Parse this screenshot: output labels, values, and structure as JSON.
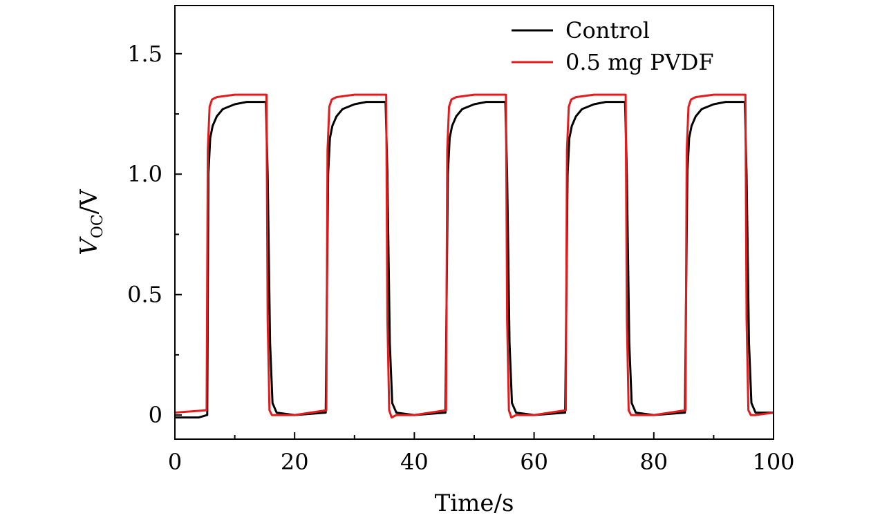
{
  "chart_data": {
    "type": "line",
    "xlabel": "Time/s",
    "ylabel_main": "V",
    "ylabel_sub": "OC",
    "ylabel_suffix": "/V",
    "xlim": [
      0,
      100
    ],
    "ylim": [
      -0.1,
      1.7
    ],
    "xticks": [
      0,
      20,
      40,
      60,
      80,
      100
    ],
    "xtick_labels": [
      "0",
      "20",
      "40",
      "60",
      "80",
      "100"
    ],
    "yticks": [
      0,
      0.5,
      1.0,
      1.5
    ],
    "ytick_labels": [
      "0",
      "0.5",
      "1.0",
      "1.5"
    ],
    "legend_position": "top-right",
    "grid": false,
    "series": [
      {
        "name": "Control",
        "color": "#000000",
        "x": [
          0,
          4.0,
          5.4,
          5.6,
          5.9,
          6.3,
          7.0,
          8.0,
          10.0,
          12.0,
          15.2,
          15.5,
          15.9,
          16.3,
          17.0,
          20.0,
          25.2,
          25.6,
          25.9,
          26.3,
          27.0,
          28.0,
          30.0,
          32.0,
          35.2,
          35.5,
          35.9,
          36.3,
          37.0,
          40.0,
          45.2,
          45.6,
          45.9,
          46.3,
          47.0,
          48.0,
          50.0,
          52.0,
          55.2,
          55.5,
          55.9,
          56.3,
          57.0,
          60.0,
          65.2,
          65.6,
          65.9,
          66.3,
          67.0,
          68.0,
          70.0,
          72.0,
          75.2,
          75.5,
          75.9,
          76.3,
          77.0,
          80.0,
          85.2,
          85.6,
          85.9,
          86.3,
          87.0,
          88.0,
          90.0,
          92.0,
          95.2,
          95.5,
          95.9,
          96.3,
          97.0,
          100.0
        ],
        "y": [
          -0.01,
          -0.01,
          0.0,
          1.0,
          1.15,
          1.2,
          1.24,
          1.27,
          1.29,
          1.3,
          1.3,
          1.0,
          0.3,
          0.05,
          0.01,
          0.0,
          0.01,
          1.0,
          1.15,
          1.2,
          1.24,
          1.27,
          1.29,
          1.3,
          1.3,
          1.0,
          0.3,
          0.05,
          0.01,
          0.0,
          0.01,
          1.0,
          1.15,
          1.2,
          1.24,
          1.27,
          1.29,
          1.3,
          1.3,
          1.0,
          0.3,
          0.05,
          0.01,
          0.0,
          0.01,
          1.0,
          1.15,
          1.2,
          1.24,
          1.27,
          1.29,
          1.3,
          1.3,
          1.0,
          0.3,
          0.05,
          0.01,
          0.0,
          0.01,
          1.0,
          1.15,
          1.2,
          1.24,
          1.27,
          1.29,
          1.3,
          1.3,
          1.0,
          0.3,
          0.05,
          0.01,
          0.01
        ]
      },
      {
        "name": "0.5 mg PVDF",
        "color": "#e41a1c",
        "x": [
          0,
          5.3,
          5.5,
          5.8,
          6.2,
          7.0,
          10.0,
          15.3,
          15.5,
          15.8,
          16.2,
          17.0,
          20.0,
          25.3,
          25.5,
          25.8,
          26.2,
          27.0,
          30.0,
          35.3,
          35.5,
          35.8,
          36.2,
          37.0,
          40.0,
          45.3,
          45.5,
          45.8,
          46.2,
          47.0,
          50.0,
          55.3,
          55.5,
          55.8,
          56.2,
          57.0,
          60.0,
          65.3,
          65.5,
          65.8,
          66.2,
          67.0,
          70.0,
          75.3,
          75.5,
          75.8,
          76.2,
          77.0,
          80.0,
          85.3,
          85.5,
          85.8,
          86.2,
          87.0,
          90.0,
          95.3,
          95.5,
          95.8,
          96.2,
          97.0,
          100.0
        ],
        "y": [
          0.01,
          0.02,
          1.1,
          1.28,
          1.31,
          1.32,
          1.33,
          1.33,
          0.4,
          0.02,
          0.0,
          0.0,
          0.0,
          0.02,
          1.1,
          1.28,
          1.31,
          1.32,
          1.33,
          1.33,
          0.4,
          0.02,
          -0.01,
          0.0,
          0.0,
          0.02,
          1.1,
          1.28,
          1.31,
          1.32,
          1.33,
          1.33,
          0.4,
          0.02,
          -0.01,
          0.0,
          0.0,
          0.02,
          1.1,
          1.28,
          1.31,
          1.32,
          1.33,
          1.33,
          0.4,
          0.02,
          0.0,
          0.0,
          0.0,
          0.02,
          1.1,
          1.28,
          1.31,
          1.32,
          1.33,
          1.33,
          0.4,
          0.02,
          0.0,
          0.0,
          0.01
        ]
      }
    ]
  }
}
